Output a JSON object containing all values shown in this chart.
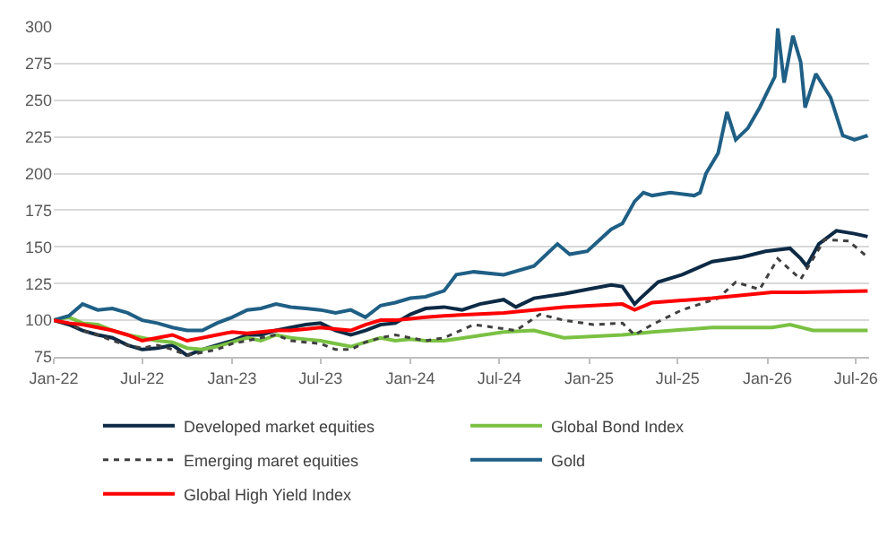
{
  "chart_data": {
    "type": "line",
    "xlim": [
      "2022-01-01",
      "2026-07-28"
    ],
    "ylim": [
      75,
      300
    ],
    "yticks": [
      75,
      100,
      125,
      150,
      175,
      200,
      225,
      250,
      275,
      300
    ],
    "xticks": [
      {
        "value": "2022-01-01",
        "label": "Jan-22"
      },
      {
        "value": "2022-07-01",
        "label": "Jul-22"
      },
      {
        "value": "2023-01-01",
        "label": "Jan-23"
      },
      {
        "value": "2023-07-01",
        "label": "Jul-23"
      },
      {
        "value": "2024-01-01",
        "label": "Jan-24"
      },
      {
        "value": "2024-07-01",
        "label": "Jul-24"
      },
      {
        "value": "2025-01-01",
        "label": "Jan-25"
      },
      {
        "value": "2025-07-01",
        "label": "Jul-25"
      },
      {
        "value": "2026-01-01",
        "label": "Jan-26"
      },
      {
        "value": "2026-07-01",
        "label": "Jul-26"
      }
    ],
    "grid": "y",
    "legend": "bottom",
    "line_style": "solid",
    "series": [
      {
        "name": "Developed market equities",
        "color": "#0d2a45",
        "x": [
          "2022-01",
          "2022-02",
          "2022-03",
          "2022-04",
          "2022-05",
          "2022-06",
          "2022-07",
          "2022-08",
          "2022-09",
          "2022-10",
          "2022-11",
          "2022-12",
          "2023-01",
          "2023-02",
          "2023-03",
          "2023-04",
          "2023-05",
          "2023-06",
          "2023-07",
          "2023-08",
          "2023-09",
          "2023-10",
          "2023-11",
          "2023-12",
          "2024-01",
          "2024-02",
          "2024-03-10",
          "2024-04-16",
          "2024-05-22",
          "2024-07-10",
          "2024-08-04",
          "2024-09-10",
          "2024-11-10",
          "2024-12-28",
          "2025-02-15",
          "2025-03-10",
          "2025-04-04",
          "2025-04-16",
          "2025-05-22",
          "2025-07-10",
          "2025-09-10",
          "2025-11-10",
          "2025-12-28",
          "2026-02-16",
          "2026-03-10",
          "2026-03-22",
          "2026-04-16",
          "2026-05-22",
          "2026-06-28",
          "2026-07-25"
        ],
        "values": [
          100,
          97,
          93,
          90,
          88,
          83,
          80,
          81,
          83,
          76,
          80,
          83,
          86,
          90,
          90,
          93,
          95,
          97,
          98,
          93,
          90,
          93,
          97,
          98,
          104,
          108,
          109,
          107,
          111,
          114,
          109,
          115,
          118,
          121,
          124,
          123,
          111,
          115,
          126,
          131,
          140,
          143,
          147,
          149,
          142,
          137,
          152,
          161,
          159,
          157
        ]
      },
      {
        "name": "Global Bond Index",
        "color": "#7ac143",
        "x": [
          "2022-01",
          "2022-02",
          "2022-03",
          "2022-04",
          "2022-05",
          "2022-06",
          "2022-07",
          "2022-08",
          "2022-09",
          "2022-10",
          "2022-11",
          "2022-12",
          "2023-01",
          "2023-02",
          "2023-03",
          "2023-04",
          "2023-05",
          "2023-06",
          "2023-07",
          "2023-08",
          "2023-09",
          "2023-10",
          "2023-11",
          "2023-12",
          "2024-01",
          "2024-02",
          "2024-03-10",
          "2024-07-10",
          "2024-09-10",
          "2024-11-10",
          "2025-03-10",
          "2025-05-10",
          "2025-09-10",
          "2026-01-10",
          "2026-02-16",
          "2026-04-04",
          "2026-07-25"
        ],
        "values": [
          100,
          102,
          98,
          97,
          93,
          90,
          88,
          86,
          85,
          81,
          80,
          82,
          85,
          88,
          86,
          90,
          88,
          87,
          86,
          84,
          82,
          85,
          88,
          86,
          87,
          86,
          86,
          92,
          93,
          88,
          90,
          92,
          95,
          95,
          97,
          93,
          93
        ]
      },
      {
        "name": "Emerging maret equities",
        "color": "#404040",
        "line_style": "dotted",
        "x": [
          "2022-01",
          "2022-02",
          "2022-03",
          "2022-04",
          "2022-05",
          "2022-06",
          "2022-07",
          "2022-08",
          "2022-09",
          "2022-10",
          "2022-11",
          "2022-12",
          "2023-01",
          "2023-02",
          "2023-03",
          "2023-04",
          "2023-05",
          "2023-06",
          "2023-07",
          "2023-08",
          "2023-09",
          "2023-10",
          "2023-11",
          "2023-12",
          "2024-01",
          "2024-02",
          "2024-03-10",
          "2024-05-10",
          "2024-08-04",
          "2024-09-22",
          "2024-11-10",
          "2025-01-10",
          "2025-03-10",
          "2025-04-04",
          "2025-05-10",
          "2025-07-10",
          "2025-09-22",
          "2025-10-28",
          "2025-12-16",
          "2026-01-22",
          "2026-03-10",
          "2026-04-28",
          "2026-06-16",
          "2026-07-25"
        ],
        "values": [
          100,
          98,
          93,
          90,
          86,
          83,
          81,
          83,
          80,
          76,
          78,
          80,
          84,
          86,
          88,
          90,
          86,
          85,
          84,
          80,
          80,
          85,
          88,
          90,
          88,
          86,
          88,
          97,
          93,
          104,
          100,
          97,
          98,
          90,
          97,
          107,
          115,
          126,
          121,
          142,
          128,
          155,
          154,
          143
        ]
      },
      {
        "name": "Gold",
        "color": "#1f5f85",
        "x": [
          "2022-01",
          "2022-02",
          "2022-03",
          "2022-04",
          "2022-05",
          "2022-06",
          "2022-07",
          "2022-08",
          "2022-09",
          "2022-10",
          "2022-11",
          "2022-12",
          "2023-01",
          "2023-02",
          "2023-03",
          "2023-04",
          "2023-05",
          "2023-06",
          "2023-07",
          "2023-08",
          "2023-09",
          "2023-10",
          "2023-11",
          "2023-12",
          "2024-01",
          "2024-02",
          "2024-03-10",
          "2024-04-04",
          "2024-05-10",
          "2024-07-10",
          "2024-09-10",
          "2024-10-28",
          "2024-11-22",
          "2024-12-28",
          "2025-02-15",
          "2025-03-10",
          "2025-04-04",
          "2025-04-22",
          "2025-05-10",
          "2025-06-16",
          "2025-08-04",
          "2025-08-16",
          "2025-08-28",
          "2025-09-22",
          "2025-10-10",
          "2025-10-28",
          "2025-11-22",
          "2025-12-16",
          "2026-01-16",
          "2026-01-22",
          "2026-02-04",
          "2026-02-22",
          "2026-03-10",
          "2026-03-19",
          "2026-04-10",
          "2026-05-10",
          "2026-06-04",
          "2026-06-28",
          "2026-07-25"
        ],
        "values": [
          100,
          103,
          111,
          107,
          108,
          105,
          100,
          98,
          95,
          93,
          93,
          98,
          102,
          107,
          108,
          111,
          109,
          108,
          107,
          105,
          107,
          102,
          110,
          112,
          115,
          116,
          120,
          131,
          133,
          131,
          137,
          152,
          145,
          147,
          162,
          166,
          181,
          187,
          185,
          187,
          185,
          187,
          200,
          214,
          242,
          223,
          231,
          245,
          266,
          299,
          262,
          294,
          276,
          245,
          268,
          252,
          226,
          223,
          226
        ]
      },
      {
        "name": "Global High Yield Index",
        "color": "#ff0000",
        "x": [
          "2022-01",
          "2022-02",
          "2022-03",
          "2022-04",
          "2022-05",
          "2022-06",
          "2022-07",
          "2022-08",
          "2022-09",
          "2022-10",
          "2022-11",
          "2022-12",
          "2023-01",
          "2023-02",
          "2023-03",
          "2023-04",
          "2023-05",
          "2023-06",
          "2023-07",
          "2023-08",
          "2023-09",
          "2023-10",
          "2023-11",
          "2023-12",
          "2024-01",
          "2024-02",
          "2024-03-10",
          "2024-07-10",
          "2024-11-10",
          "2025-03-10",
          "2025-04-04",
          "2025-05-10",
          "2025-09-10",
          "2026-01-10",
          "2026-03-10",
          "2026-07-25"
        ],
        "values": [
          100,
          98,
          97,
          95,
          93,
          90,
          86,
          88,
          90,
          86,
          88,
          90,
          92,
          91,
          92,
          93,
          93,
          94,
          95,
          94,
          93,
          97,
          100,
          100,
          101,
          102,
          103,
          105,
          109,
          111,
          107,
          112,
          115,
          119,
          119,
          120
        ]
      }
    ]
  }
}
